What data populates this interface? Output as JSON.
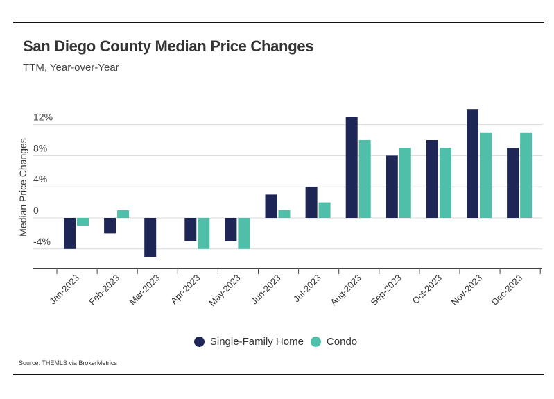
{
  "header": {
    "title": "San Diego County Median Price Changes",
    "subtitle": "TTM, Year-over-Year"
  },
  "footer": {
    "source": "Source:  THEMLS via BrokerMetrics"
  },
  "colors": {
    "single_family": "#1e2656",
    "condo": "#50bfaa",
    "grid": "#d9d9d9",
    "axis": "#444444"
  },
  "chart_data": {
    "type": "bar",
    "title": "San Diego County Median Price Changes",
    "subtitle": "TTM, Year-over-Year",
    "xlabel": "",
    "ylabel": "Median Price Changes",
    "ylim": [
      -6,
      15
    ],
    "yticks": [
      -4,
      0,
      4,
      8,
      12
    ],
    "ytick_labels": [
      "-4%",
      "0",
      "4%",
      "8%",
      "12%"
    ],
    "grid": true,
    "legend_position": "bottom-center",
    "categories": [
      "Jan-2023",
      "Feb-2023",
      "Mar-2023",
      "Apr-2023",
      "May-2023",
      "Jun-2023",
      "Jul-2023",
      "Aug-2023",
      "Sep-2023",
      "Oct-2023",
      "Nov-2023",
      "Dec-2023"
    ],
    "series": [
      {
        "name": "Single-Family Home",
        "color": "#1e2656",
        "values": [
          -4,
          -2,
          -5,
          -3,
          -3,
          3,
          4,
          13,
          8,
          10,
          14,
          9
        ]
      },
      {
        "name": "Condo",
        "color": "#50bfaa",
        "values": [
          -1,
          1,
          0,
          -4,
          -4,
          1,
          2,
          10,
          9,
          9,
          11,
          11
        ]
      }
    ],
    "source": "Source:  THEMLS via BrokerMetrics"
  }
}
